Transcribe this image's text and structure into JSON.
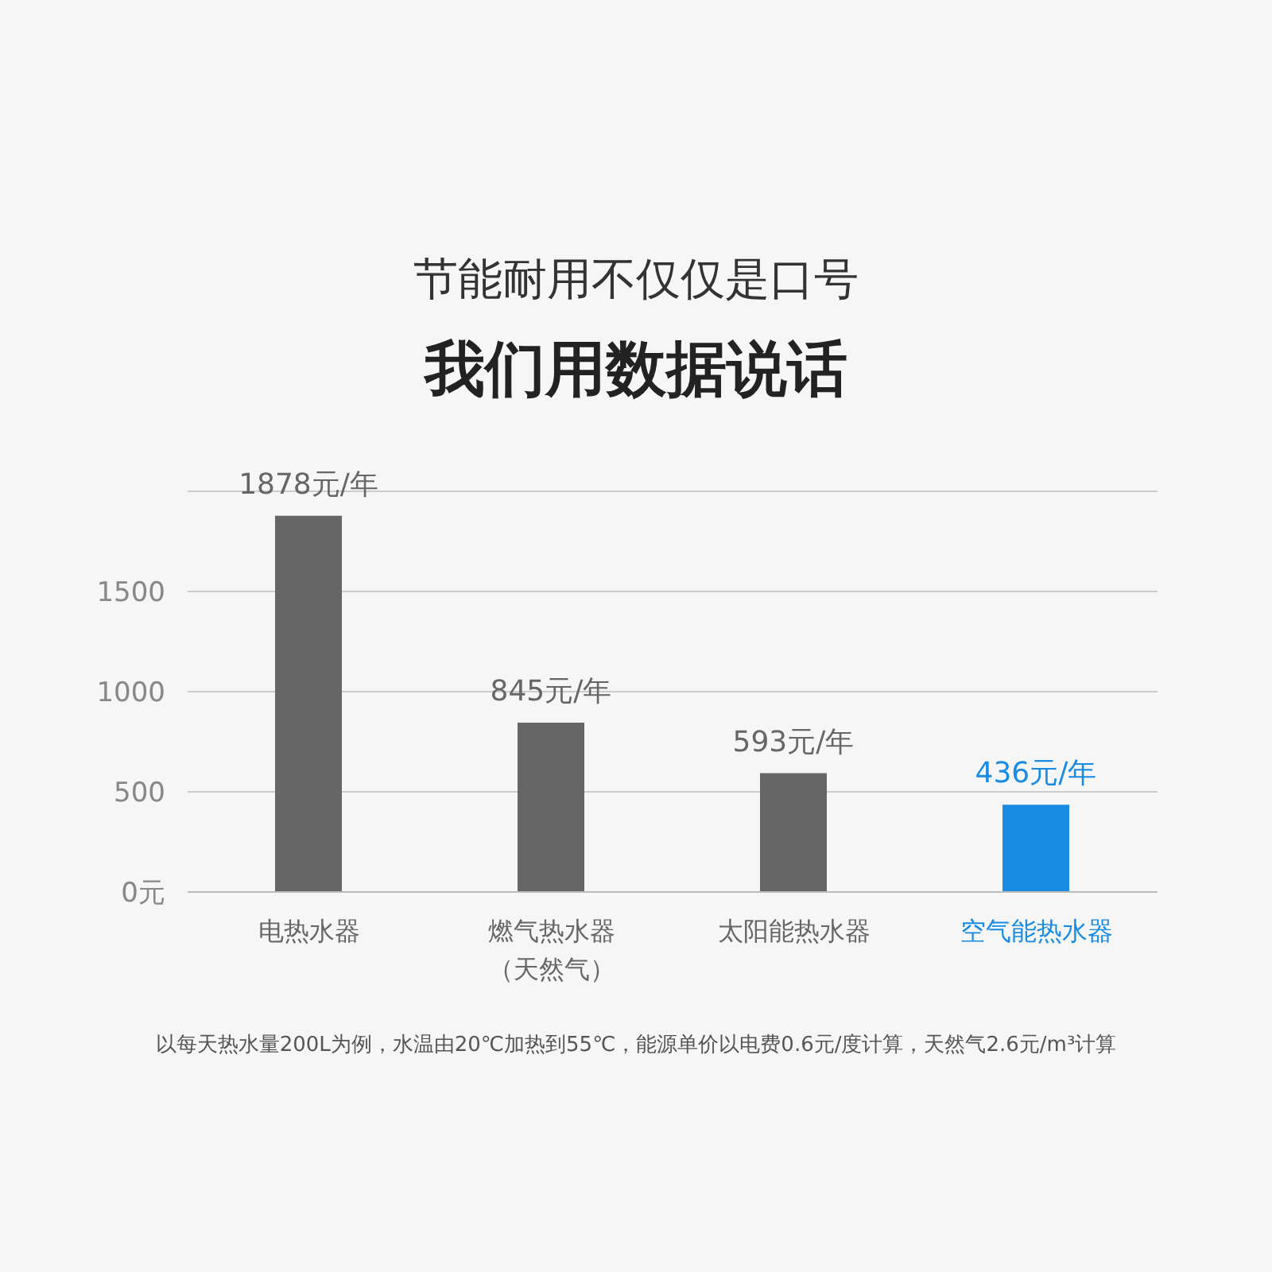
{
  "chart_data": {
    "type": "bar",
    "title": "节能耐用不仅仅是口号",
    "subtitle": "我们用数据说话",
    "categories": [
      "电热水器",
      "燃气热水器（天然气）",
      "太阳能热水器",
      "空气能热水器"
    ],
    "values": [
      1878,
      845,
      593,
      436
    ],
    "colors": [
      "#666666",
      "#666666",
      "#666666",
      "#1a8be3"
    ],
    "value_labels": [
      "1878元/年",
      "845元/年",
      "593元/年",
      "436元/年"
    ],
    "ylim": [
      0,
      2000
    ],
    "yticks": [
      {
        "value": 0,
        "label": "0元"
      },
      500,
      1000,
      1500
    ],
    "grid": "y",
    "annotations": [
      "以每天热水量200L为例，水温由20℃加热到55℃，能源单价以电费0.6元/度计算，天然气2.6元/m³计算"
    ]
  }
}
